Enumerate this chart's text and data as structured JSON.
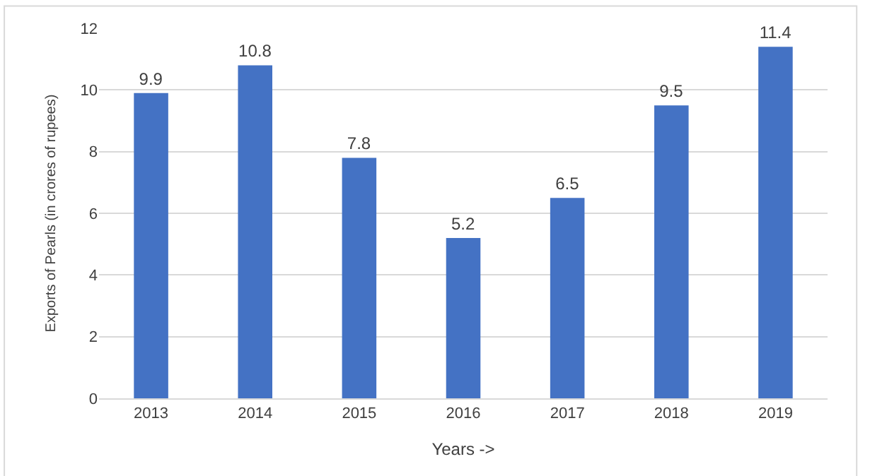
{
  "chart_data": {
    "type": "bar",
    "xlabel": "Years ->",
    "ylabel": "Exports of Pearls (in crores of rupees)",
    "categories": [
      "2013",
      "2014",
      "2015",
      "2016",
      "2017",
      "2018",
      "2019"
    ],
    "values": [
      9.9,
      10.8,
      7.8,
      5.2,
      6.5,
      9.5,
      11.4
    ],
    "color": "#4472c4",
    "ylim": [
      0,
      12
    ],
    "yticks": [
      0,
      2,
      4,
      6,
      8,
      10,
      12
    ],
    "grid": "y",
    "data_labels": true,
    "legend": false
  }
}
